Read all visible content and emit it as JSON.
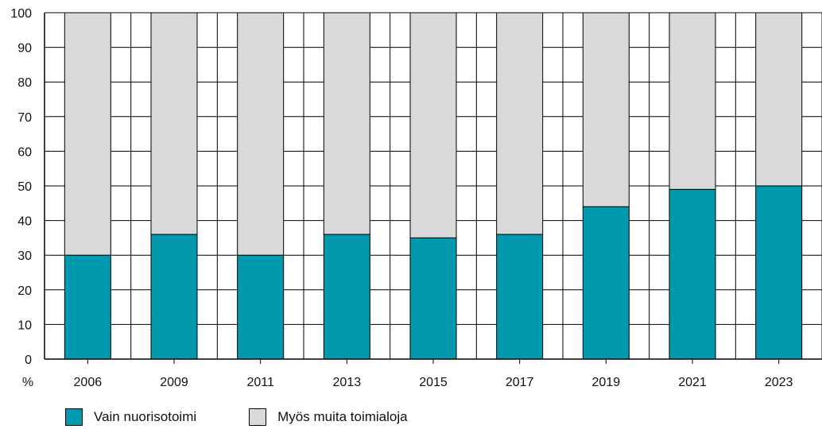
{
  "chart_data": {
    "type": "bar",
    "stacked": true,
    "categories": [
      "2006",
      "2009",
      "2011",
      "2013",
      "2015",
      "2017",
      "2019",
      "2021",
      "2023"
    ],
    "series": [
      {
        "name": "Vain nuorisotoimi",
        "color": "#0099ad",
        "values": [
          30,
          36,
          30,
          36,
          35,
          36,
          44,
          49,
          50
        ]
      },
      {
        "name": "Myös muita toimialoja",
        "color": "#d9d9d9",
        "values": [
          70,
          64,
          70,
          64,
          65,
          64,
          56,
          51,
          50
        ]
      }
    ],
    "ylabel": "%",
    "ylim": [
      0,
      100
    ],
    "yticks": [
      0,
      10,
      20,
      30,
      40,
      50,
      60,
      70,
      80,
      90,
      100
    ],
    "grid": true,
    "legend_position": "bottom-left"
  }
}
